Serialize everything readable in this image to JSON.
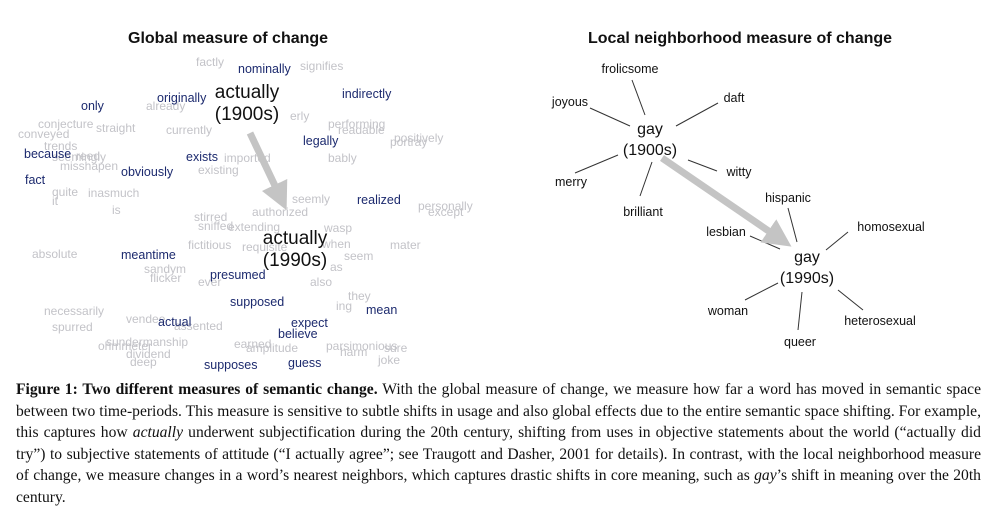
{
  "figure": {
    "left_title": "Global measure of change",
    "right_title": "Local neighborhood measure of change",
    "global": {
      "dark_words": [
        "nominally",
        "only",
        "originally",
        "indirectly",
        "legally",
        "because",
        "exists",
        "obviously",
        "fact",
        "realized",
        "meantime",
        "presumed",
        "supposed",
        "mean",
        "actual",
        "expect",
        "believe",
        "supposes",
        "guess"
      ],
      "light_words": [
        "factly",
        "signifies",
        "already",
        "erly",
        "currently",
        "conjecture",
        "conveyed",
        "straight",
        "trends",
        "seemingly",
        "readable",
        "performing",
        "portray",
        "positively",
        "reed",
        "imported",
        "bably",
        "misshapen",
        "existing",
        "inasmuch",
        "quite",
        "it",
        "is",
        "seemly",
        "personally",
        "except",
        "stirred",
        "extending",
        "sniffed",
        "authorized",
        "fictitious",
        "requisite",
        "wasp",
        "when",
        "seem",
        "mater",
        "absolute",
        "sandym",
        "flicker",
        "ever",
        "as",
        "also",
        "they",
        "necessarily",
        "vendee",
        "spurred",
        "sundermanship",
        "ohmmeter",
        "dividend",
        "earned",
        "assented",
        "amplitude",
        "parsimonious",
        "joke",
        "deep",
        "sure",
        "harm",
        "ing",
        "is"
      ],
      "anchor_1900": [
        "actually",
        "(1900s)"
      ],
      "anchor_1990": [
        "actually",
        "(1990s)"
      ]
    },
    "local": {
      "gay_1900": [
        "gay",
        "(1900s)"
      ],
      "gay_1990": [
        "gay",
        "(1990s)"
      ],
      "neighbors_1900": [
        "frolicsome",
        "joyous",
        "daft",
        "merry",
        "witty",
        "brilliant"
      ],
      "neighbors_1990": [
        "hispanic",
        "lesbian",
        "homosexual",
        "woman",
        "queer",
        "heterosexual"
      ]
    }
  },
  "caption": {
    "label": "Figure 1: Two different measures of semantic change.",
    "text_1": " With the global measure of change, we measure how far a word has moved in semantic space between two time-periods. This measure is sensitive to subtle shifts in usage and also global effects due to the entire semantic space shifting. For example, this captures how ",
    "em_1": "actually",
    "text_2": " underwent subjectification during the 20th century, shifting from uses in objective statements about the world (“actually did try”) to subjective statements of attitude (“I actually agree”; see Traugott and Dasher, 2001 for details). In contrast, with the local neighborhood measure of change, we measure changes in a word’s nearest neighbors, which captures drastic shifts in core meaning, such as ",
    "em_2": "gay",
    "text_3": "’s shift in meaning over the 20th century."
  }
}
